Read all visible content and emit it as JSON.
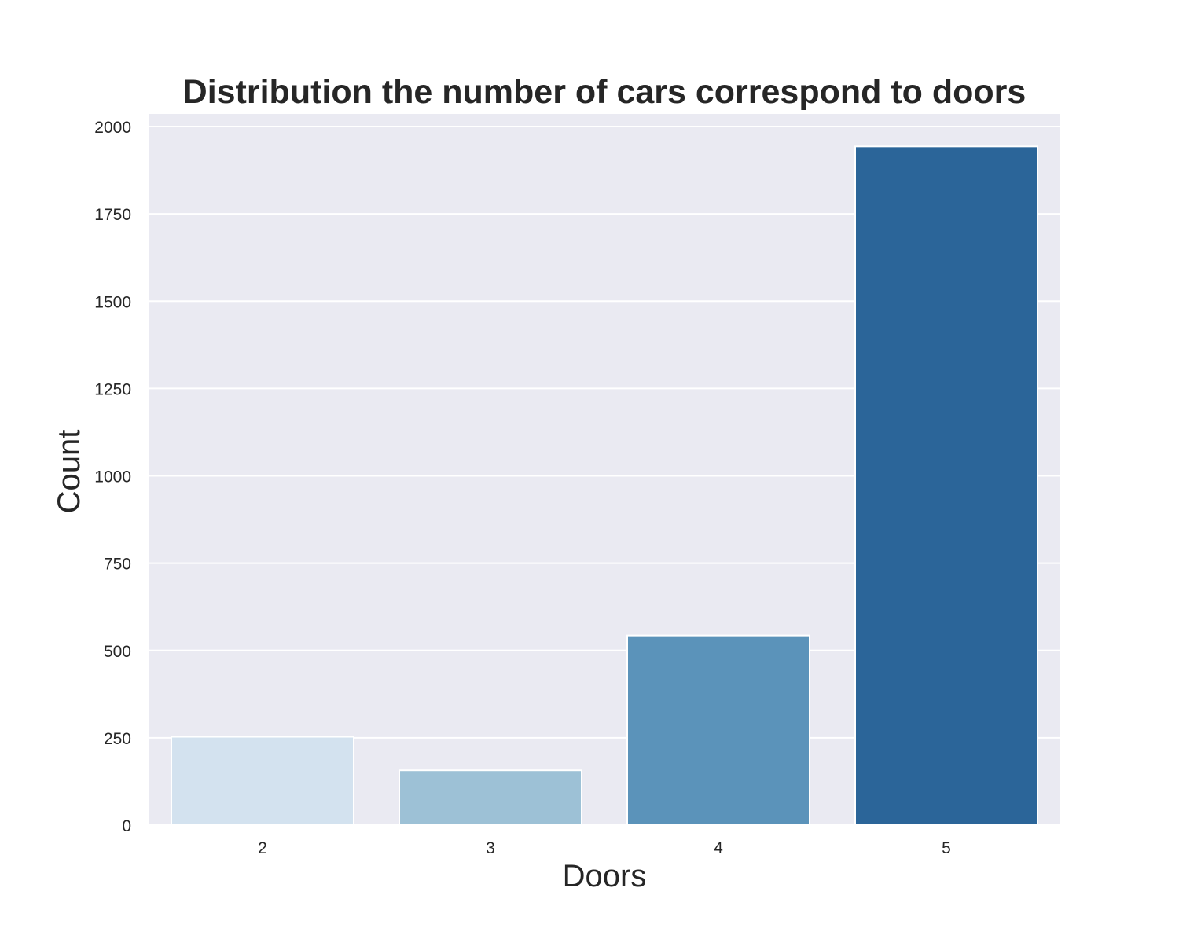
{
  "chart_data": {
    "type": "bar",
    "title": "Distribution the number of cars correspond to doors",
    "xlabel": "Doors",
    "ylabel": "Count",
    "categories": [
      "2",
      "3",
      "4",
      "5"
    ],
    "values": [
      253,
      157,
      543,
      1943
    ],
    "ylim": [
      0,
      2036
    ],
    "yticks": [
      0,
      250,
      500,
      750,
      1000,
      1250,
      1500,
      1750,
      2000
    ],
    "grid": true,
    "colors": [
      "#d3e2ef",
      "#9dc1d6",
      "#5b93ba",
      "#2b6599"
    ],
    "background": "#eaeaf2"
  }
}
